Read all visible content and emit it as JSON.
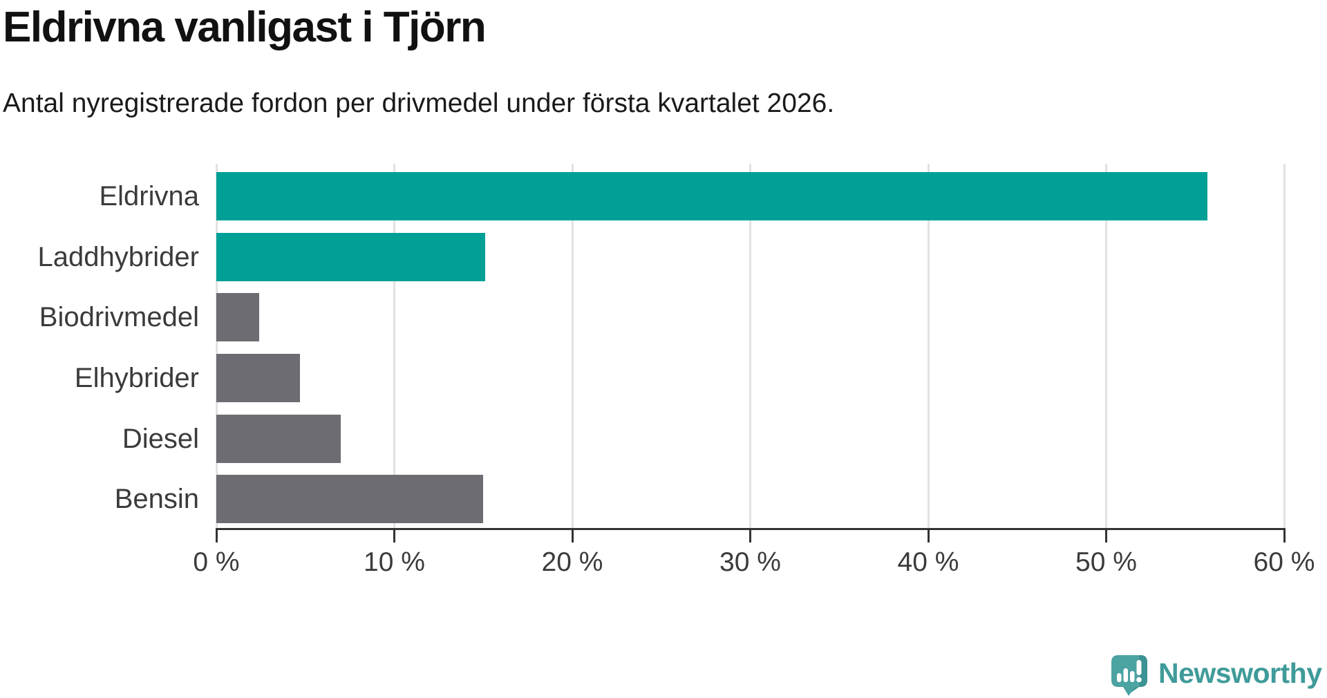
{
  "header": {
    "title": "Eldrivna vanligast i Tjörn",
    "subtitle": "Antal nyregistrerade fordon per drivmedel under första kvartalet 2026."
  },
  "chart_data": {
    "type": "bar",
    "orientation": "horizontal",
    "title": "Eldrivna vanligast i Tjörn",
    "subtitle": "Antal nyregistrerade fordon per drivmedel under första kvartalet 2026.",
    "categories": [
      "Eldrivna",
      "Laddhybrider",
      "Biodrivmedel",
      "Elhybrider",
      "Diesel",
      "Bensin"
    ],
    "values": [
      55.7,
      15.1,
      2.4,
      4.7,
      7.0,
      15.0
    ],
    "unit": "%",
    "bar_colors": [
      "#00a096",
      "#00a096",
      "#6c6c72",
      "#6c6c72",
      "#6c6c72",
      "#6c6c72"
    ],
    "xlim": [
      0,
      60
    ],
    "x_ticks": [
      0,
      10,
      20,
      30,
      40,
      50,
      60
    ],
    "x_tick_labels": [
      "0 %",
      "10 %",
      "20 %",
      "30 %",
      "40 %",
      "50 %",
      "60 %"
    ],
    "grid": true,
    "legend": "none",
    "xlabel": "",
    "ylabel": ""
  },
  "colors": {
    "accent_teal": "#00a096",
    "neutral_gray": "#6c6c72",
    "axis": "#333333",
    "gridline": "#e2e2e2",
    "text_dark": "#111111",
    "text_label": "#3b3b3b",
    "logo_teal": "#3f9b99",
    "logo_icon_fill": "#4ba3a2",
    "logo_icon_shade": "#3d9294"
  },
  "footer": {
    "brand": "Newsworthy",
    "logo_icon": "newsworthy-speech-bubble-chart-icon"
  }
}
